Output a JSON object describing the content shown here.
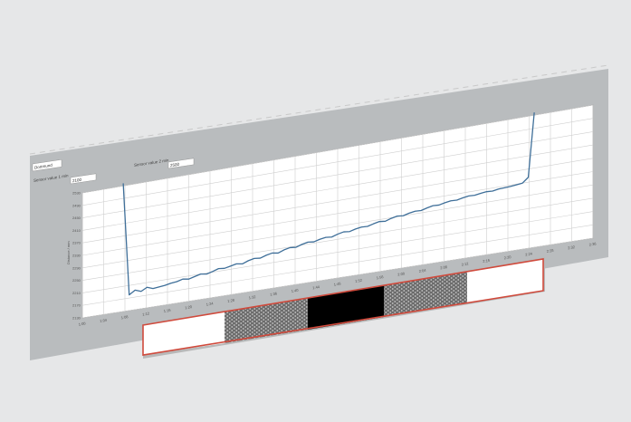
{
  "app": {
    "toolbar": {
      "dropdown_value": "Dortmund",
      "field1_label": "Sensor value 1 min",
      "field1_value": "2100",
      "field2_label": "Sensor value 2 min",
      "field2_value": "2500"
    }
  },
  "colors": {
    "panel": "#b9bcbe",
    "plot_bg": "#ffffff",
    "grid": "#cfcfcf",
    "line": "#3f6f99",
    "strip_border": "#d04a3c",
    "strip_black": "#000000"
  },
  "chart_data": {
    "type": "line",
    "title": "",
    "xlabel": "",
    "ylabel": "Distance / mm",
    "x_ticks": [
      "1:00",
      "1:04",
      "1:08",
      "1:12",
      "1:16",
      "1:20",
      "1:24",
      "1:28",
      "1:32",
      "1:36",
      "1:40",
      "1:44",
      "1:48",
      "1:52",
      "1:56",
      "2:00",
      "2:04",
      "2:08",
      "2:12",
      "2:16",
      "2:20",
      "2:24",
      "2:28",
      "2:32",
      "2:36"
    ],
    "y_ticks": [
      "2130",
      "2170",
      "2210",
      "2250",
      "2290",
      "2330",
      "2370",
      "2410",
      "2450",
      "2490",
      "2530"
    ],
    "ylim": [
      2130,
      2530
    ],
    "grid": true,
    "series": [
      {
        "values": [
          2530,
          2180,
          2192,
          2185,
          2195,
          2188,
          2190,
          2192,
          2196,
          2198,
          2203,
          2200,
          2205,
          2210,
          2207,
          2212,
          2218,
          2216,
          2220,
          2224,
          2221,
          2228,
          2232,
          2230,
          2236,
          2240,
          2237,
          2244,
          2248,
          2246,
          2252,
          2256,
          2254,
          2259,
          2262,
          2260,
          2266,
          2270,
          2268,
          2273,
          2276,
          2275,
          2280,
          2284,
          2282,
          2288,
          2292,
          2290,
          2295,
          2298,
          2297,
          2302,
          2306,
          2305,
          2309,
          2312,
          2311,
          2315,
          2318,
          2317,
          2320,
          2322,
          2321,
          2324,
          2325,
          2326,
          2328,
          2330,
          2345,
          2530
        ]
      }
    ]
  }
}
